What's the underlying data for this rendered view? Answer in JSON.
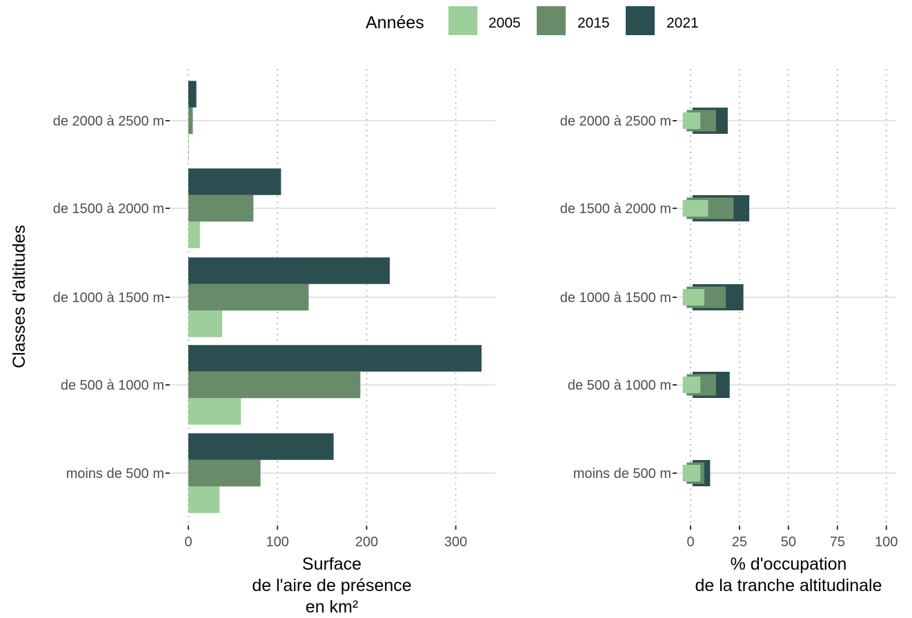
{
  "legend": {
    "title": "Années",
    "items": [
      {
        "label": "2005",
        "color": "#9ccf9a"
      },
      {
        "label": "2015",
        "color": "#688c69"
      },
      {
        "label": "2021",
        "color": "#2b4f50"
      }
    ],
    "placement": "top"
  },
  "y_axis_title": "Classes d'altitudes",
  "chart_data": [
    {
      "type": "bar",
      "orientation": "horizontal",
      "categories": [
        "moins de 500 m",
        "de 500 à 1000 m",
        "de 1000 à 1500 m",
        "de 1500 à 2000 m",
        "de 2000 à 2500 m"
      ],
      "series": [
        {
          "name": "2005",
          "values": [
            35,
            59,
            38,
            13,
            0.5
          ]
        },
        {
          "name": "2015",
          "values": [
            81,
            193,
            135,
            73,
            5
          ]
        },
        {
          "name": "2021",
          "values": [
            163,
            329,
            226,
            104,
            9
          ]
        }
      ],
      "xlabel": [
        "Surface",
        "de l'aire de présence",
        "en km²"
      ],
      "ylabel": "Classes d'altitudes",
      "xlim": [
        -2,
        345
      ],
      "xticks": [
        0,
        100,
        200,
        300
      ],
      "grid": true
    },
    {
      "type": "bar",
      "orientation": "horizontal",
      "style": "overlapping-boxes",
      "categories": [
        "moins de 500 m",
        "de 500 à 1000 m",
        "de 1000 à 1500 m",
        "de 1500 à 2000 m",
        "de 2000 à 2500 m"
      ],
      "series": [
        {
          "name": "2005",
          "values": [
            5,
            5,
            7,
            9,
            5
          ]
        },
        {
          "name": "2015",
          "values": [
            7,
            13,
            18,
            22,
            13
          ]
        },
        {
          "name": "2021",
          "values": [
            10,
            20,
            27,
            30,
            19
          ]
        }
      ],
      "xlabel": [
        "% d'occupation",
        "de la tranche altitudinale"
      ],
      "xlim": [
        -5,
        105
      ],
      "xticks": [
        0,
        25,
        50,
        75,
        100
      ],
      "grid": true
    }
  ]
}
